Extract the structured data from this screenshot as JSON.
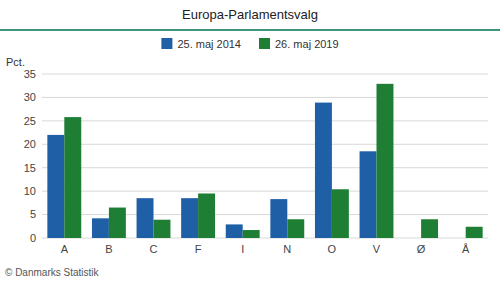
{
  "chart_data": {
    "type": "bar",
    "title": "Europa-Parlamentsvalg",
    "categories": [
      "A",
      "B",
      "C",
      "F",
      "I",
      "N",
      "O",
      "V",
      "Ø",
      "Å"
    ],
    "series": [
      {
        "name": "25. maj 2014",
        "color": "#1F5FA6",
        "values": [
          22.0,
          4.2,
          8.5,
          8.5,
          2.9,
          8.3,
          28.9,
          18.5,
          0.0,
          0.0
        ]
      },
      {
        "name": "26. maj 2019",
        "color": "#1E7E34",
        "values": [
          25.8,
          6.5,
          3.9,
          9.5,
          1.7,
          4.0,
          10.4,
          32.9,
          4.0,
          2.4
        ]
      }
    ],
    "ylabel": "Pct.",
    "ylim": [
      0,
      35
    ],
    "yticks": [
      0,
      5,
      10,
      15,
      20,
      25,
      30,
      35
    ],
    "grid": true,
    "legend": "top",
    "annotations": [
      "© Danmarks Statistik"
    ]
  }
}
